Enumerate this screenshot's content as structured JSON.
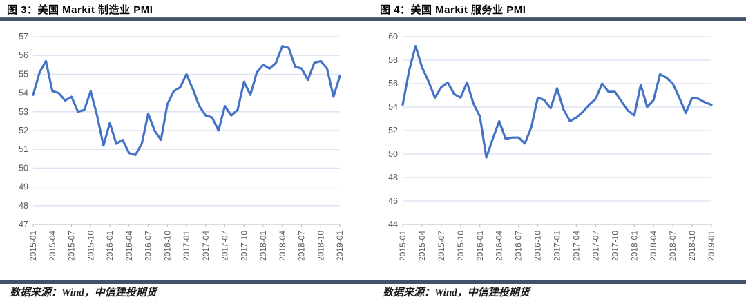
{
  "figures": [
    {
      "title": "图 3：美国 Markit 制造业 PMI",
      "source": "数据来源：Wind，中信建投期货"
    },
    {
      "title": "图 4：美国 Markit 服务业 PMI",
      "source": "数据来源：Wind，中信建投期货"
    }
  ],
  "colors": {
    "line": "#4472C4",
    "grid": "#d9e1f2",
    "axis": "#c3c8d2",
    "tick_label": "#595959",
    "divider": "#41526b"
  },
  "chart_data": [
    {
      "type": "line",
      "title": "图 3：美国 Markit 制造业 PMI",
      "x_tick_labels": [
        "2015-01",
        "2015-04",
        "2015-07",
        "2015-10",
        "2016-01",
        "2016-04",
        "2016-07",
        "2016-10",
        "2017-01",
        "2017-04",
        "2017-07",
        "2017-10",
        "2018-01",
        "2018-04",
        "2018-07",
        "2018-10",
        "2019-01"
      ],
      "x_frequency": "monthly, labels every 3 months",
      "values": [
        53.9,
        55.1,
        55.7,
        54.1,
        54.0,
        53.6,
        53.8,
        53.0,
        53.1,
        54.1,
        52.8,
        51.2,
        52.4,
        51.3,
        51.5,
        50.8,
        50.7,
        51.3,
        52.9,
        52.0,
        51.5,
        53.4,
        54.1,
        54.3,
        55.0,
        54.2,
        53.3,
        52.8,
        52.7,
        52.0,
        53.3,
        52.8,
        53.1,
        54.6,
        53.9,
        55.1,
        55.5,
        55.3,
        55.6,
        56.5,
        56.4,
        55.4,
        55.3,
        54.7,
        55.6,
        55.7,
        55.3,
        53.8,
        54.9
      ],
      "ylim": [
        47,
        57
      ],
      "ytick_step": 1,
      "grid": true,
      "legend": "none",
      "line_color": "#4472C4"
    },
    {
      "type": "line",
      "title": "图 4：美国 Markit 服务业 PMI",
      "x_tick_labels": [
        "2015-01",
        "2015-04",
        "2015-07",
        "2015-10",
        "2016-01",
        "2016-04",
        "2016-07",
        "2016-10",
        "2017-01",
        "2017-04",
        "2017-07",
        "2017-10",
        "2018-01",
        "2018-04",
        "2018-07",
        "2018-10",
        "2019-01"
      ],
      "x_frequency": "monthly, labels every 3 months",
      "values": [
        54.2,
        57.1,
        59.2,
        57.4,
        56.2,
        54.8,
        55.7,
        56.1,
        55.1,
        54.8,
        56.1,
        54.3,
        53.2,
        49.7,
        51.3,
        52.8,
        51.3,
        51.4,
        51.4,
        50.9,
        52.3,
        54.8,
        54.6,
        53.9,
        55.6,
        53.8,
        52.8,
        53.1,
        53.6,
        54.2,
        54.7,
        56.0,
        55.3,
        55.3,
        54.5,
        53.7,
        53.3,
        55.9,
        54.0,
        54.6,
        56.8,
        56.5,
        56.0,
        54.8,
        53.5,
        54.8,
        54.7,
        54.4,
        54.2
      ],
      "ylim": [
        44,
        60
      ],
      "ytick_step": 2,
      "grid": true,
      "legend": "none",
      "line_color": "#4472C4"
    }
  ]
}
